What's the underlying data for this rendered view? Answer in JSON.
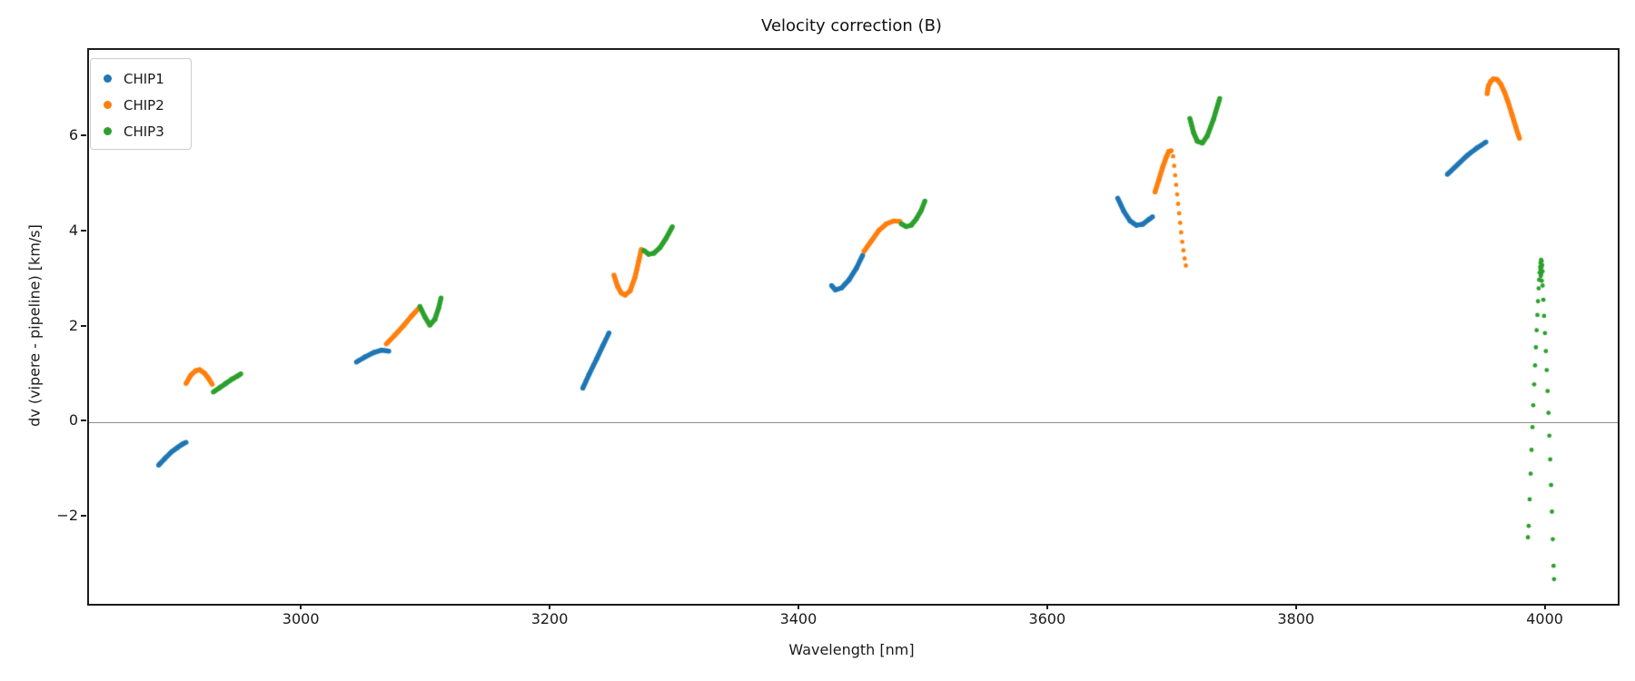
{
  "title": "Velocity correction (B)",
  "chart_data": {
    "type": "scatter",
    "title": "Velocity correction (B)",
    "xlabel": "Wavelength [nm]",
    "ylabel": "dv (vipere - pipeline) [km/s]",
    "xlim": [
      2829,
      4058
    ],
    "ylim": [
      -3.82,
      7.84
    ],
    "grid": false,
    "xticks": [
      3000,
      3200,
      3400,
      3600,
      3800,
      4000
    ],
    "xtick_labels": [
      "3000",
      "3200",
      "3400",
      "3600",
      "3800",
      "4000"
    ],
    "yticks": [
      -2,
      0,
      2,
      4,
      6
    ],
    "ytick_labels": [
      "−2",
      "0",
      "2",
      "4",
      "6"
    ],
    "hline": {
      "y": 0,
      "color": "#8c8c8c"
    },
    "legend": {
      "position": "upper left",
      "entries": [
        "CHIP1",
        "CHIP2",
        "CHIP3"
      ]
    },
    "series": [
      {
        "name": "CHIP1",
        "color": "#1f77b4",
        "segments": [
          {
            "dense": true,
            "points": [
              [
                2885,
                -0.9
              ],
              [
                2890,
                -0.76
              ],
              [
                2895,
                -0.63
              ],
              [
                2900,
                -0.53
              ],
              [
                2904,
                -0.46
              ],
              [
                2907,
                -0.42
              ]
            ]
          },
          {
            "dense": true,
            "points": [
              [
                3044,
                1.27
              ],
              [
                3051,
                1.38
              ],
              [
                3058,
                1.47
              ],
              [
                3064,
                1.52
              ],
              [
                3070,
                1.5
              ]
            ]
          },
          {
            "dense": true,
            "points": [
              [
                3226,
                0.72
              ],
              [
                3231,
                1.01
              ],
              [
                3237,
                1.33
              ],
              [
                3242,
                1.61
              ],
              [
                3247,
                1.88
              ]
            ]
          },
          {
            "dense": true,
            "points": [
              [
                3426,
                2.88
              ],
              [
                3429,
                2.79
              ],
              [
                3434,
                2.83
              ],
              [
                3440,
                3.0
              ],
              [
                3446,
                3.25
              ],
              [
                3451,
                3.52
              ]
            ]
          },
          {
            "dense": true,
            "points": [
              [
                3656,
                4.72
              ],
              [
                3661,
                4.44
              ],
              [
                3666,
                4.24
              ],
              [
                3671,
                4.15
              ],
              [
                3676,
                4.17
              ],
              [
                3681,
                4.27
              ],
              [
                3684,
                4.33
              ]
            ]
          },
          {
            "dense": true,
            "points": [
              [
                3921,
                5.22
              ],
              [
                3929,
                5.42
              ],
              [
                3937,
                5.62
              ],
              [
                3945,
                5.78
              ],
              [
                3952,
                5.9
              ]
            ]
          }
        ]
      },
      {
        "name": "CHIP2",
        "color": "#ff7f0e",
        "segments": [
          {
            "dense": true,
            "points": [
              [
                2907,
                0.82
              ],
              [
                2911,
                1.0
              ],
              [
                2915,
                1.09
              ],
              [
                2918,
                1.11
              ],
              [
                2922,
                1.03
              ],
              [
                2925,
                0.93
              ],
              [
                2928,
                0.8
              ]
            ]
          },
          {
            "dense": true,
            "points": [
              [
                3068,
                1.65
              ],
              [
                3075,
                1.84
              ],
              [
                3082,
                2.04
              ],
              [
                3088,
                2.23
              ],
              [
                3094,
                2.4
              ]
            ]
          },
          {
            "dense": true,
            "points": [
              [
                3251,
                3.1
              ],
              [
                3254,
                2.86
              ],
              [
                3257,
                2.72
              ],
              [
                3260,
                2.68
              ],
              [
                3264,
                2.77
              ],
              [
                3268,
                3.06
              ],
              [
                3271,
                3.4
              ],
              [
                3273,
                3.64
              ]
            ]
          },
          {
            "dense": true,
            "points": [
              [
                3452,
                3.6
              ],
              [
                3458,
                3.82
              ],
              [
                3464,
                4.04
              ],
              [
                3470,
                4.18
              ],
              [
                3476,
                4.24
              ],
              [
                3481,
                4.23
              ]
            ]
          },
          {
            "dense": true,
            "points": [
              [
                3686,
                4.85
              ],
              [
                3689,
                5.1
              ],
              [
                3692,
                5.36
              ],
              [
                3695,
                5.58
              ],
              [
                3697,
                5.7
              ],
              [
                3699,
                5.72
              ]
            ]
          },
          {
            "dense": false,
            "points": [
              [
                3700.5,
                5.6
              ],
              [
                3701.4,
                5.4
              ],
              [
                3702.2,
                5.2
              ],
              [
                3703.0,
                5.0
              ],
              [
                3703.8,
                4.8
              ],
              [
                3704.6,
                4.6
              ],
              [
                3705.4,
                4.4
              ],
              [
                3706.2,
                4.2
              ],
              [
                3707.0,
                4.0
              ],
              [
                3707.9,
                3.8
              ],
              [
                3708.8,
                3.62
              ],
              [
                3709.8,
                3.45
              ],
              [
                3710.8,
                3.3
              ]
            ]
          },
          {
            "dense": true,
            "points": [
              [
                3953,
                6.92
              ],
              [
                3954,
                7.08
              ],
              [
                3956,
                7.18
              ],
              [
                3958,
                7.23
              ],
              [
                3961,
                7.22
              ],
              [
                3964,
                7.12
              ],
              [
                3967,
                6.95
              ],
              [
                3970,
                6.73
              ],
              [
                3973,
                6.48
              ],
              [
                3976,
                6.22
              ],
              [
                3979,
                5.98
              ]
            ]
          }
        ]
      },
      {
        "name": "CHIP3",
        "color": "#2ca02c",
        "segments": [
          {
            "dense": true,
            "points": [
              [
                2929,
                0.64
              ],
              [
                2934,
                0.73
              ],
              [
                2939,
                0.82
              ],
              [
                2944,
                0.91
              ],
              [
                2948,
                0.97
              ],
              [
                2951,
                1.02
              ]
            ]
          },
          {
            "dense": true,
            "points": [
              [
                3095,
                2.44
              ],
              [
                3099,
                2.22
              ],
              [
                3103,
                2.05
              ],
              [
                3107,
                2.17
              ],
              [
                3110,
                2.4
              ],
              [
                3112,
                2.62
              ]
            ]
          },
          {
            "dense": true,
            "points": [
              [
                3275,
                3.62
              ],
              [
                3279,
                3.54
              ],
              [
                3283,
                3.56
              ],
              [
                3288,
                3.68
              ],
              [
                3293,
                3.88
              ],
              [
                3298,
                4.12
              ]
            ]
          },
          {
            "dense": true,
            "points": [
              [
                3482,
                4.18
              ],
              [
                3486,
                4.12
              ],
              [
                3490,
                4.15
              ],
              [
                3494,
                4.28
              ],
              [
                3498,
                4.46
              ],
              [
                3501,
                4.66
              ]
            ]
          },
          {
            "dense": true,
            "points": [
              [
                3714,
                6.4
              ],
              [
                3717,
                6.1
              ],
              [
                3720,
                5.92
              ],
              [
                3724,
                5.88
              ],
              [
                3728,
                6.03
              ],
              [
                3733,
                6.38
              ],
              [
                3738,
                6.82
              ]
            ]
          },
          {
            "dense": false,
            "points": [
              [
                3994.8,
                3.0
              ],
              [
                3995.2,
                3.15
              ],
              [
                3995.6,
                3.27
              ],
              [
                3996.0,
                3.36
              ],
              [
                3996.4,
                3.42
              ],
              [
                3996.8,
                3.4
              ],
              [
                3997.2,
                3.31
              ],
              [
                3997.6,
                3.18
              ],
              [
                3995.9,
                3.22
              ],
              [
                3996.3,
                3.3
              ],
              [
                3996.7,
                3.26
              ],
              [
                3996.1,
                3.08
              ],
              [
                3996.5,
                3.12
              ],
              [
                3996.9,
                2.98
              ]
            ]
          },
          {
            "dense": false,
            "points": [
              [
                3994.4,
                2.82
              ],
              [
                3993.9,
                2.55
              ],
              [
                3993.4,
                2.26
              ],
              [
                3992.8,
                1.94
              ],
              [
                3992.2,
                1.58
              ],
              [
                3991.5,
                1.2
              ],
              [
                3990.8,
                0.8
              ],
              [
                3990.1,
                0.36
              ],
              [
                3989.4,
                -0.1
              ],
              [
                3988.7,
                -0.58
              ],
              [
                3988.0,
                -1.08
              ],
              [
                3987.2,
                -1.62
              ],
              [
                3986.4,
                -2.18
              ],
              [
                3985.8,
                -2.42
              ]
            ]
          },
          {
            "dense": false,
            "points": [
              [
                3997.6,
                2.88
              ],
              [
                3998.2,
                2.58
              ],
              [
                3998.8,
                2.24
              ],
              [
                3999.5,
                1.88
              ],
              [
                4000.2,
                1.5
              ],
              [
                4000.9,
                1.1
              ],
              [
                4001.6,
                0.66
              ],
              [
                4002.3,
                0.2
              ],
              [
                4003.0,
                -0.28
              ],
              [
                4003.7,
                -0.78
              ],
              [
                4004.4,
                -1.32
              ],
              [
                4005.1,
                -1.88
              ],
              [
                4005.8,
                -2.46
              ],
              [
                4006.4,
                -3.02
              ],
              [
                4006.8,
                -3.3
              ]
            ]
          }
        ]
      }
    ]
  }
}
